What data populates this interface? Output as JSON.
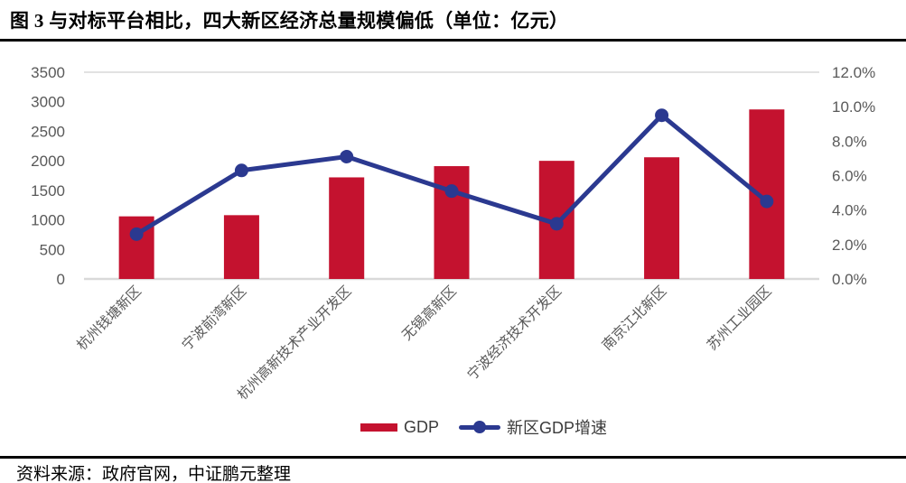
{
  "title": "图 3 与对标平台相比，四大新区经济总量规模偏低（单位：亿元）",
  "footer": {
    "source": "资料来源：政府官网，中证鹏元整理"
  },
  "legend": {
    "position": "bottom-center",
    "items": [
      {
        "label": "GDP",
        "swatch": "bar"
      },
      {
        "label": "新区GDP增速",
        "swatch": "line-with-dot"
      }
    ]
  },
  "colors": {
    "bar": "#C4122F",
    "line": "#2B3990",
    "grid": "#D9D9D9",
    "tick_text": "#595959",
    "rule": "#000000"
  },
  "chart_data": {
    "type": "bar",
    "subtype": "combo-bar-line-dual-axis",
    "title": "图 3 与对标平台相比，四大新区经济总量规模偏低（单位：亿元）",
    "categories": [
      "杭州钱塘新区",
      "宁波前湾新区",
      "杭州高新技术产业开发区",
      "无锡高新区",
      "宁波经济技术开发区",
      "南京江北新区",
      "苏州工业园区"
    ],
    "series": [
      {
        "name": "GDP",
        "type": "bar",
        "axis": "left",
        "unit": "亿元",
        "values": [
          1060,
          1080,
          1720,
          1910,
          2000,
          2060,
          2870
        ]
      },
      {
        "name": "新区GDP增速",
        "type": "line",
        "axis": "right",
        "unit": "%",
        "values": [
          2.6,
          6.3,
          7.1,
          5.1,
          3.2,
          9.5,
          4.5
        ]
      }
    ],
    "left_axis": {
      "min": 0,
      "max": 3500,
      "step": 500,
      "ticks": [
        "0",
        "500",
        "1000",
        "1500",
        "2000",
        "2500",
        "3000",
        "3500"
      ]
    },
    "right_axis": {
      "min": 0,
      "max": 12,
      "step": 2,
      "ticks": [
        "0.0%",
        "2.0%",
        "4.0%",
        "6.0%",
        "8.0%",
        "10.0%",
        "12.0%"
      ]
    },
    "grid": "top-border-and-baseline-only",
    "xlabel": "",
    "ylabel": "",
    "legend_position": "bottom-center"
  }
}
